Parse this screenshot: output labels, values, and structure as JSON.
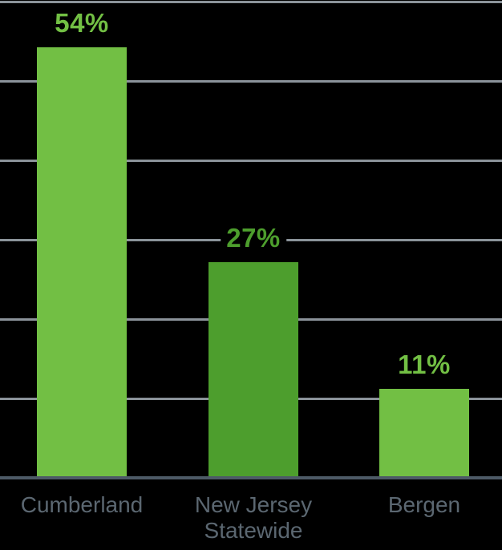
{
  "chart_data": {
    "type": "bar",
    "categories": [
      "Cumberland",
      "New Jersey Statewide",
      "Bergen"
    ],
    "values": [
      54,
      27,
      11
    ],
    "value_labels": [
      "54%",
      "27%",
      "11%"
    ],
    "bar_colors": [
      "#72bf44",
      "#4d9e2d",
      "#72bf44"
    ],
    "value_label_colors": [
      "#72bf44",
      "#4d9e2d",
      "#72bf44"
    ],
    "title": "",
    "xlabel": "",
    "ylabel": "",
    "ylim": [
      0,
      60
    ],
    "grid_step": 10,
    "grid": true,
    "legend": false,
    "y_tick_labels_shown": false,
    "gridline_color": "#8b939a",
    "axis_line_color": "#4d5a66",
    "category_label_color": "#5b6771",
    "background_color": "#000000"
  }
}
